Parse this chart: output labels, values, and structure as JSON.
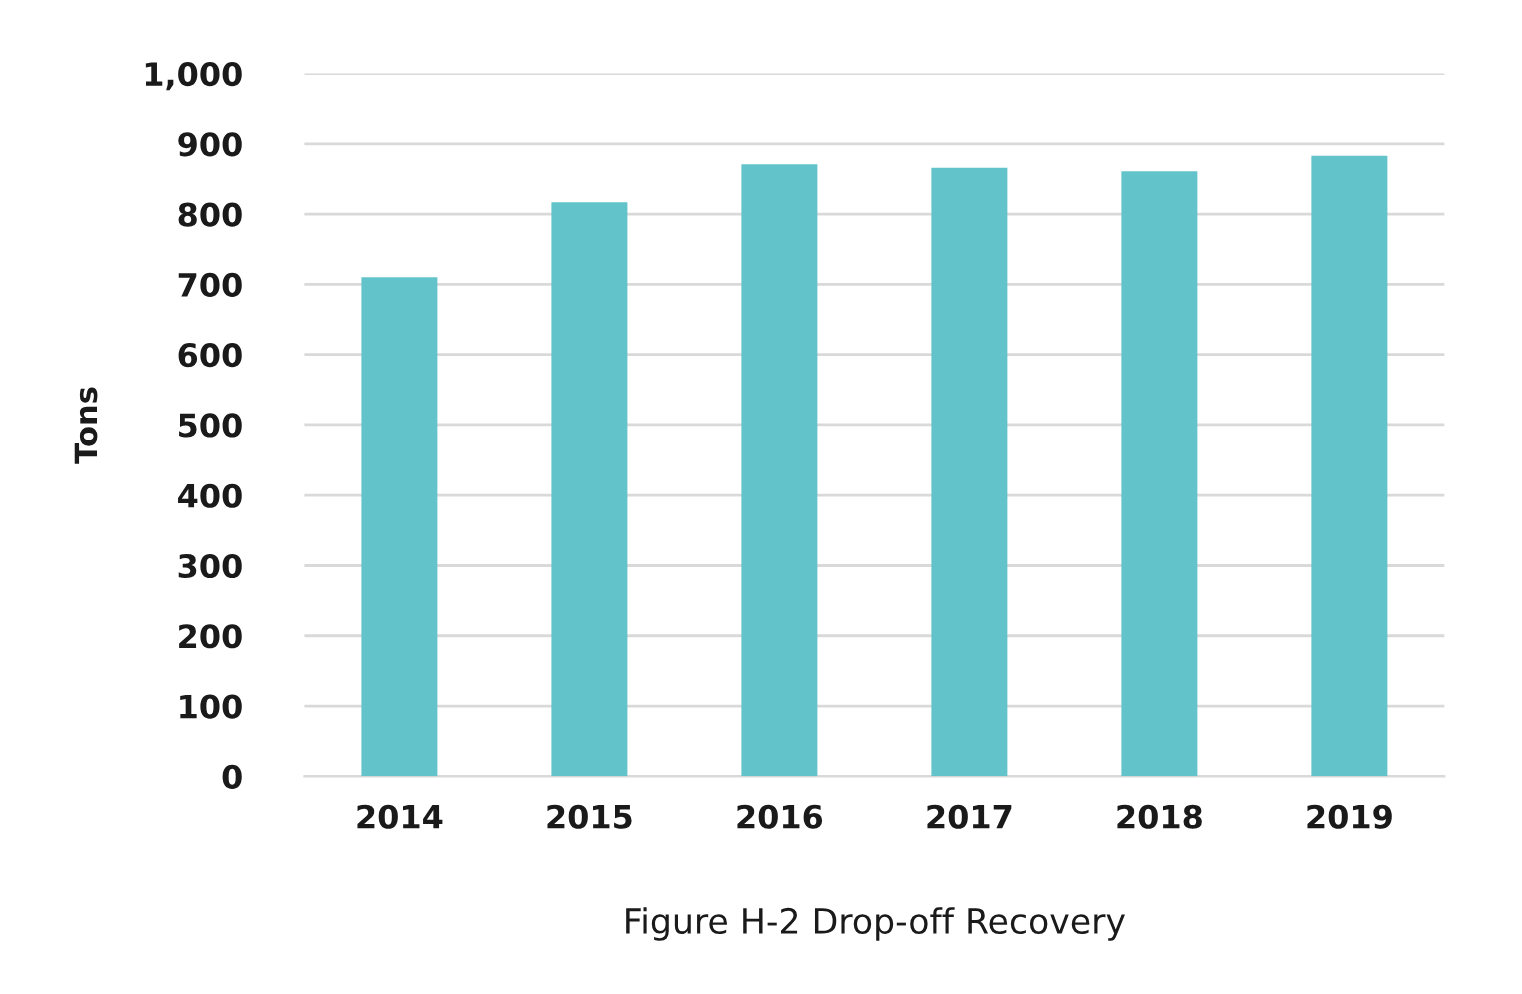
{
  "chart_data": {
    "type": "bar",
    "title": "Figure H-2 Drop-off Recovery",
    "ylabel": "Tons",
    "categories": [
      "2014",
      "2015",
      "2016",
      "2017",
      "2018",
      "2019"
    ],
    "values": [
      710,
      817,
      871,
      866,
      861,
      883
    ],
    "color": "#62c3cb",
    "ylim": [
      0,
      1000
    ],
    "yticks": [
      0,
      100,
      200,
      300,
      400,
      500,
      600,
      700,
      800,
      900,
      {
        "value": 1000,
        "label": "1,000"
      }
    ],
    "grid": "y",
    "legend": false
  }
}
